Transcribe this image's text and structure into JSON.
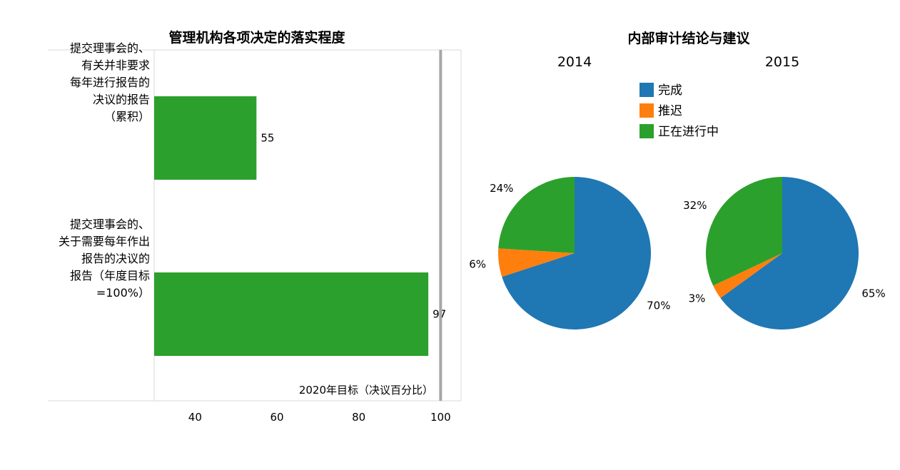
{
  "chart_data": [
    {
      "type": "bar",
      "orientation": "horizontal",
      "title": "管理机构各项决定的落实程度",
      "categories": [
        [
          "提交理事会的、",
          "有关并非要求",
          "每年进行报告的",
          "决议的报告",
          "（累积）"
        ],
        [
          "提交理事会的、",
          "关于需要每年作出",
          "报告的决议的",
          "报告（年度目标",
          "=100%）"
        ]
      ],
      "values": [
        55,
        97
      ],
      "value_labels": [
        "55",
        "97"
      ],
      "xlim": [
        30,
        105
      ],
      "xticks": [
        40,
        60,
        80,
        100
      ],
      "target": {
        "value": 100,
        "label": "2020年目标（决议百分比）"
      },
      "color": "#2ca02c"
    },
    {
      "type": "pie",
      "title": "内部审计结论与建议",
      "legend": {
        "placement": "top-center",
        "entries": [
          {
            "name": "完成",
            "color": "#1f77b4"
          },
          {
            "name": "推迟",
            "color": "#ff7f0e"
          },
          {
            "name": "正在进行中",
            "color": "#2ca02c"
          }
        ]
      },
      "pies": [
        {
          "title": "2014",
          "values": [
            70,
            6,
            24
          ],
          "labels": [
            "70%",
            "6%",
            "24%"
          ]
        },
        {
          "title": "2015",
          "values": [
            65,
            3,
            32
          ],
          "labels": [
            "65%",
            "3%",
            "32%"
          ]
        }
      ]
    }
  ]
}
